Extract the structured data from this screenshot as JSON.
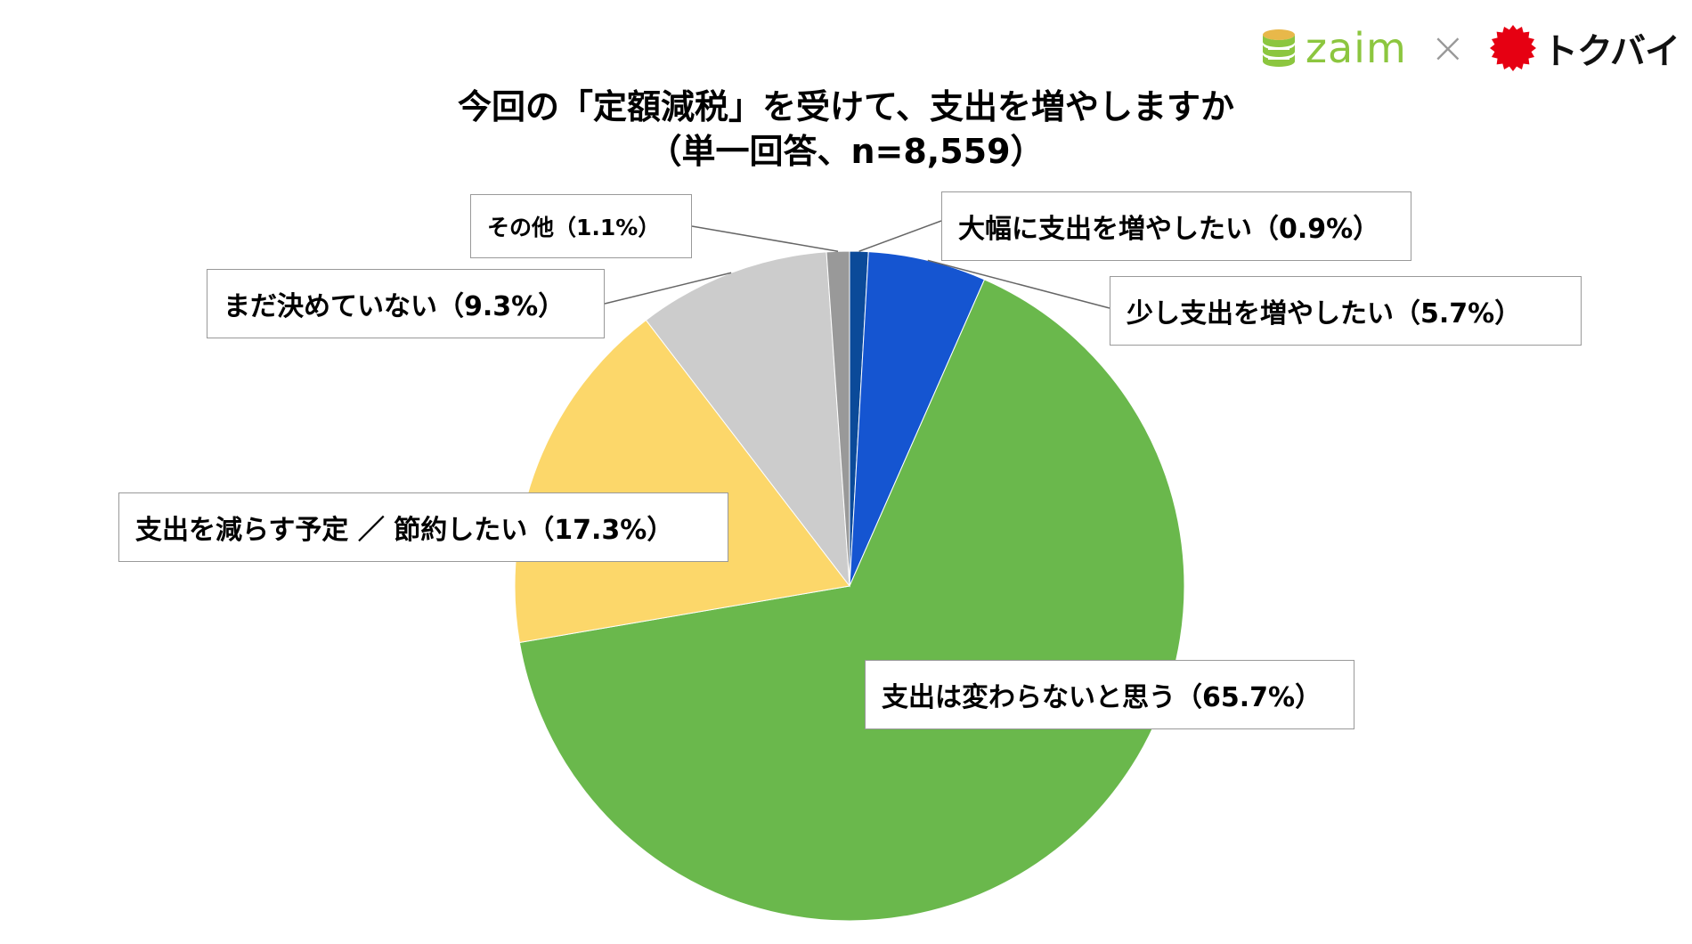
{
  "logos": {
    "zaim_text": "zaim",
    "separator": "×",
    "tokubai_text": "トクバイ",
    "zaim_color": "#8cc63f",
    "tokubai_color": "#e60012"
  },
  "chart_data": {
    "type": "pie",
    "title": "今回の「定額減税」を受けて、支出を増やしますか",
    "subtitle": "（単一回答、n=8,559）",
    "start": "12 o'clock, clockwise",
    "slices": [
      {
        "label": "大幅に支出を増やしたい（0.9%）",
        "value": 0.9,
        "color": "#0b4a99"
      },
      {
        "label": "少し支出を増やしたい（5.7%）",
        "value": 5.7,
        "color": "#1555d1"
      },
      {
        "label": "支出は変わらないと思う（65.7%）",
        "value": 65.7,
        "color": "#6ab84c"
      },
      {
        "label": "支出を減らす予定 ／ 節約したい（17.3%）",
        "value": 17.3,
        "color": "#fcd76a"
      },
      {
        "label": "まだ決めていない（9.3%）",
        "value": 9.3,
        "color": "#cccccc"
      },
      {
        "label": "その他（1.1%）",
        "value": 1.1,
        "color": "#999999"
      }
    ]
  }
}
